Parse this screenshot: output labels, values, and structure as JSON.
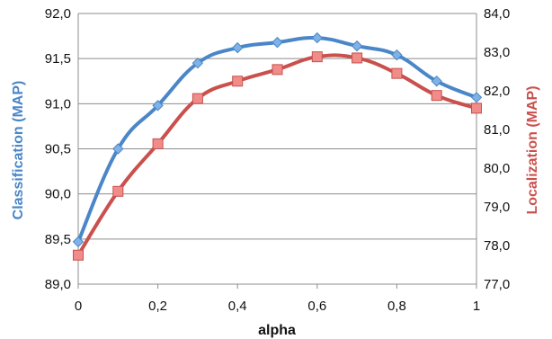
{
  "chart_data": {
    "type": "line",
    "xlabel": "alpha",
    "x": [
      0,
      0.1,
      0.2,
      0.3,
      0.4,
      0.5,
      0.6,
      0.7,
      0.8,
      0.9,
      1
    ],
    "x_tick_labels": [
      "0",
      "0,2",
      "0,4",
      "0,6",
      "0,8",
      "1"
    ],
    "xlim": [
      0,
      1
    ],
    "ylabel_left": "Classification (MAP)",
    "ylim_left": [
      89.0,
      92.0
    ],
    "y_tick_labels_left": [
      "89,0",
      "89,5",
      "90,0",
      "90,5",
      "91,0",
      "91,5",
      "92,0"
    ],
    "ylabel_right": "Localization (MAP)",
    "ylim_right": [
      77.0,
      84.0
    ],
    "y_tick_labels_right": [
      "77,0",
      "78,0",
      "79,0",
      "80,0",
      "81,0",
      "82,0",
      "83,0",
      "84,0"
    ],
    "grid": "horizontal",
    "legend": "none",
    "series": [
      {
        "axis": "left",
        "marker": "diamond",
        "color": "#4a86c8",
        "marker_color": "#7fb2e6",
        "values": [
          89.47,
          90.5,
          90.98,
          91.45,
          91.62,
          91.68,
          91.73,
          91.64,
          91.54,
          91.25,
          91.07
        ]
      },
      {
        "axis": "right",
        "marker": "square",
        "color": "#c9504c",
        "marker_color": "#f08c8a",
        "values": [
          77.75,
          79.4,
          80.63,
          81.8,
          82.25,
          82.55,
          82.88,
          82.85,
          82.45,
          81.88,
          81.55
        ]
      }
    ]
  }
}
